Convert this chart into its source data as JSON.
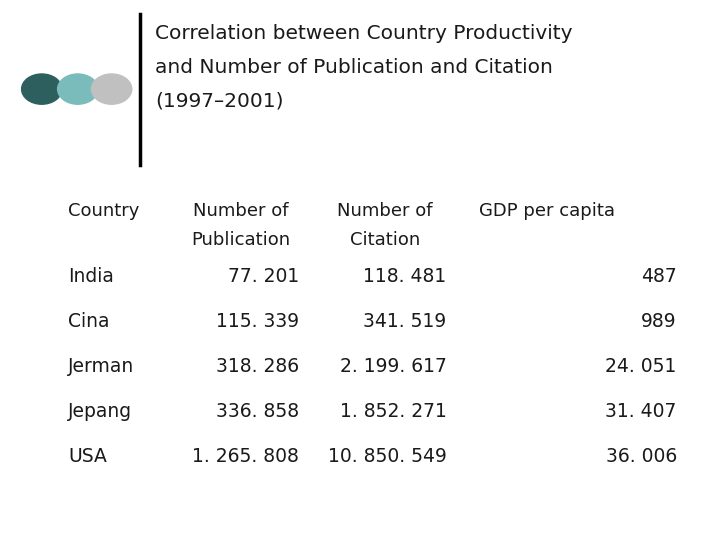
{
  "title_line1": "Correlation between Country Productivity",
  "title_line2": "and Number of Publication and Citation",
  "title_line3": "(1997–2001)",
  "countries": [
    "India",
    "Cina",
    "Jerman",
    "Jepang",
    "USA"
  ],
  "publications": [
    "77. 201",
    "115. 339",
    "318. 286",
    "336. 858",
    "1. 265. 808"
  ],
  "citations": [
    "118. 481",
    "341. 519",
    "2. 199. 617",
    "1. 852. 271",
    "10. 850. 549"
  ],
  "gdp": [
    "487",
    "989",
    "24. 051",
    "31. 407",
    "36. 006"
  ],
  "bg_color": "#ffffff",
  "text_color": "#1a1a1a",
  "dot_colors": [
    "#2e5f5f",
    "#7abcbc",
    "#c0c0c0"
  ],
  "vertical_line_color": "#000000",
  "title_fontsize": 14.5,
  "header_fontsize": 13,
  "data_fontsize": 13.5
}
